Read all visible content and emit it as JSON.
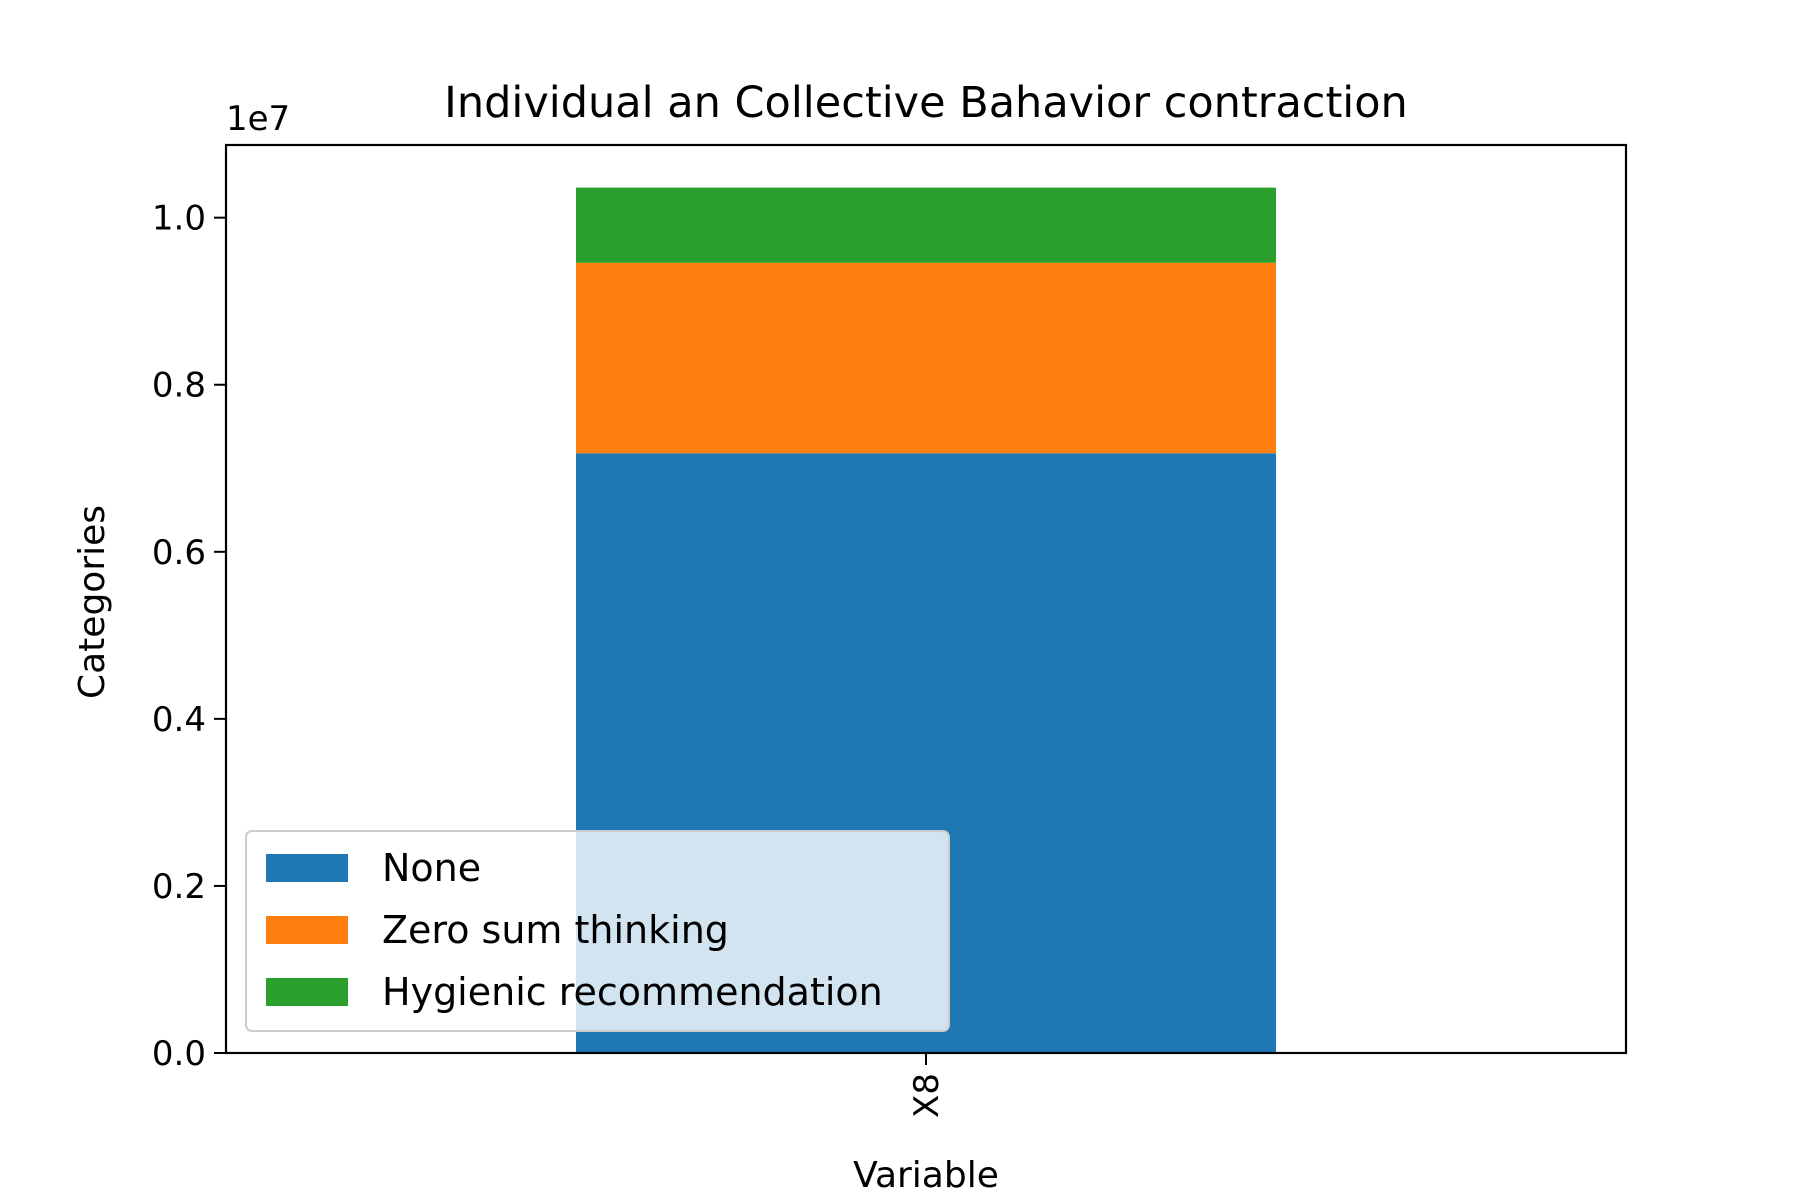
{
  "chart_data": {
    "type": "bar",
    "stacked": true,
    "title": "Individual an Collective Bahavior contraction",
    "xlabel": "Variable",
    "ylabel": "Categories",
    "y_offset_label": "1e7",
    "categories": [
      "X8"
    ],
    "series": [
      {
        "name": "None",
        "values": [
          7180000
        ],
        "color": "#1f77b4"
      },
      {
        "name": "Zero sum thinking",
        "values": [
          2280000
        ],
        "color": "#ff7f0e"
      },
      {
        "name": "Hygienic recommendation",
        "values": [
          900000
        ],
        "color": "#2ca02c"
      }
    ],
    "ylim": [
      0,
      10870000
    ],
    "y_ticks": [
      0,
      2000000,
      4000000,
      6000000,
      8000000,
      10000000
    ],
    "y_tick_labels": [
      "0.0",
      "0.2",
      "0.4",
      "0.6",
      "0.8",
      "1.0"
    ],
    "grid": false,
    "legend_position": "lower-left"
  }
}
